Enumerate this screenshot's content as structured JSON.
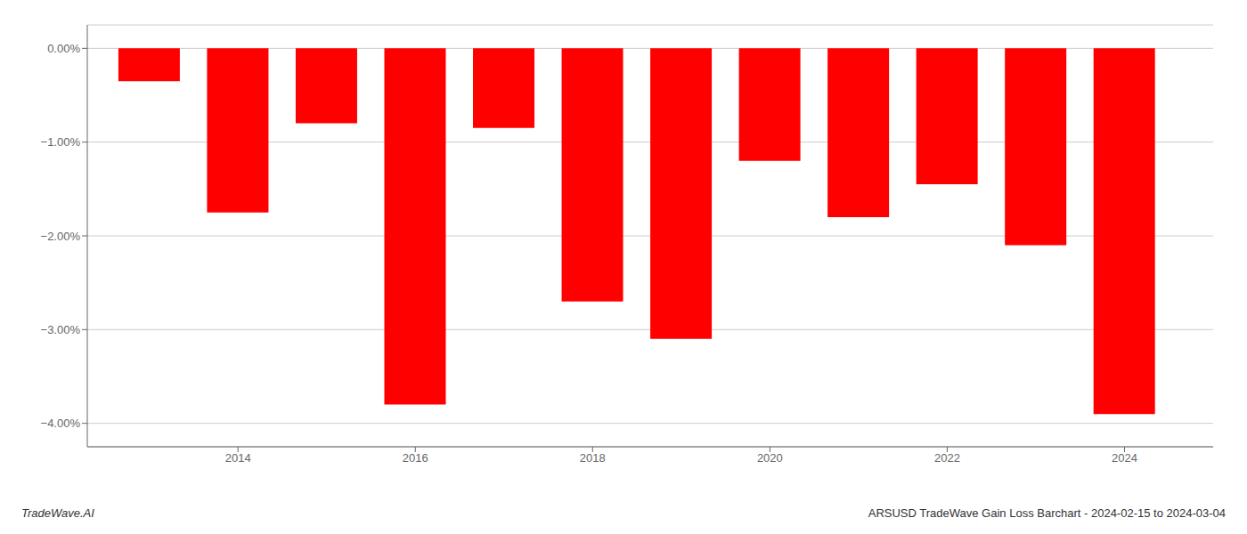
{
  "chart_data": {
    "type": "bar",
    "title": "ARSUSD TradeWave Gain Loss Barchart - 2024-02-15 to 2024-03-04",
    "annotations": [
      "TradeWave.AI"
    ],
    "x": [
      2013,
      2014,
      2015,
      2016,
      2017,
      2018,
      2019,
      2020,
      2021,
      2022,
      2023,
      2024
    ],
    "values": [
      -0.0035,
      -0.0175,
      -0.008,
      -0.038,
      -0.0085,
      -0.027,
      -0.031,
      -0.012,
      -0.018,
      -0.0145,
      -0.021,
      -0.039
    ],
    "color": "#ff0000",
    "xlim": [
      2012.3,
      2025.0
    ],
    "xticks": [
      2014,
      2016,
      2018,
      2020,
      2022,
      2024
    ],
    "ylim": [
      -0.0425,
      0.0025
    ],
    "yticks": [
      {
        "value": -0.04,
        "label": "−4.00%"
      },
      {
        "value": -0.03,
        "label": "−3.00%"
      },
      {
        "value": -0.02,
        "label": "−2.00%"
      },
      {
        "value": -0.01,
        "label": "−1.00%"
      },
      {
        "value": 0,
        "label": "0.00%"
      }
    ],
    "grid": true
  }
}
